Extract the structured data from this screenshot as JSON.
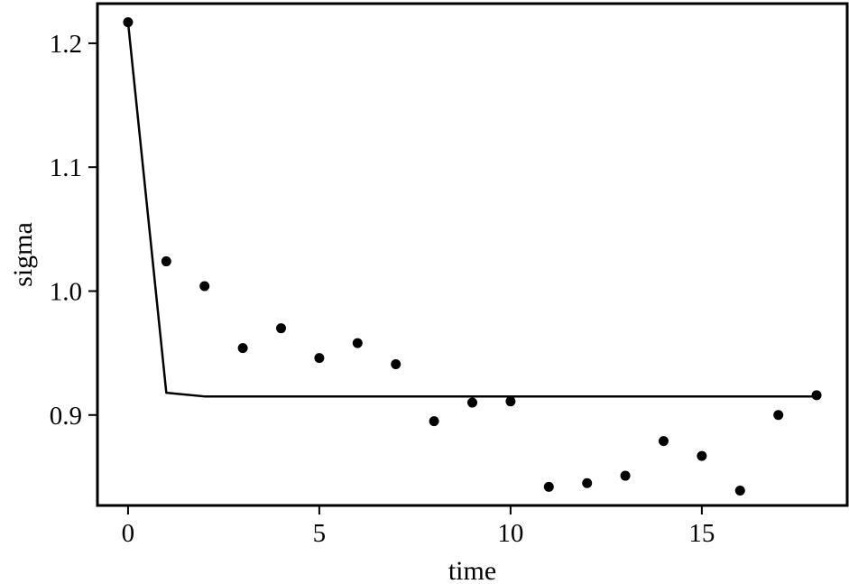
{
  "chart_data": {
    "type": "scatter",
    "xlabel": "time",
    "ylabel": "sigma",
    "xlim": [
      -0.8,
      18.8
    ],
    "ylim": [
      0.827,
      1.232
    ],
    "x_ticks": [
      0,
      5,
      10,
      15
    ],
    "y_ticks": [
      0.9,
      1.0,
      1.1,
      1.2
    ],
    "x_tick_labels": [
      "0",
      "5",
      "10",
      "15"
    ],
    "y_tick_labels": [
      "0.9",
      "1.0",
      "1.1",
      "1.2"
    ],
    "grid": false,
    "legend": "none",
    "series": [
      {
        "type": "scatter",
        "x": [
          0,
          1,
          2,
          3,
          4,
          5,
          6,
          7,
          8,
          9,
          10,
          11,
          12,
          13,
          14,
          15,
          16,
          17,
          18
        ],
        "y": [
          1.217,
          1.024,
          1.004,
          0.954,
          0.97,
          0.946,
          0.958,
          0.941,
          0.895,
          0.91,
          0.911,
          0.842,
          0.845,
          0.851,
          0.879,
          0.867,
          0.839,
          0.9,
          0.916
        ]
      },
      {
        "type": "line",
        "x": [
          0,
          1,
          2,
          3,
          4,
          5,
          6,
          7,
          8,
          9,
          10,
          11,
          12,
          13,
          14,
          15,
          16,
          17,
          18
        ],
        "y": [
          1.217,
          0.918,
          0.915,
          0.915,
          0.915,
          0.915,
          0.915,
          0.915,
          0.915,
          0.915,
          0.915,
          0.915,
          0.915,
          0.915,
          0.915,
          0.915,
          0.915,
          0.915,
          0.915
        ]
      }
    ],
    "colors": {
      "marks": "#000000",
      "background": "#ffffff"
    }
  }
}
